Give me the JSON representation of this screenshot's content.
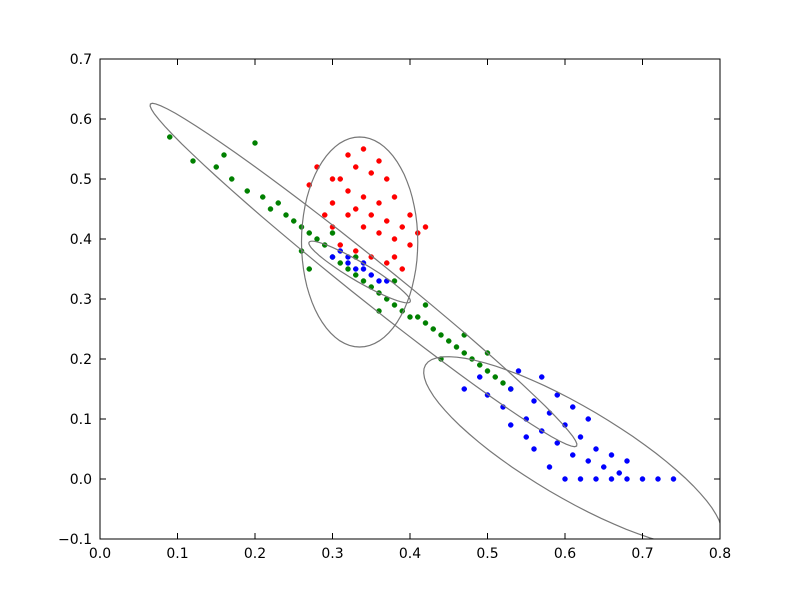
{
  "chart_data": {
    "type": "scatter",
    "xlim": [
      0.0,
      0.8
    ],
    "ylim": [
      -0.1,
      0.7
    ],
    "xticks": [
      {
        "value": 0.0,
        "label": "0.0"
      },
      {
        "value": 0.1,
        "label": "0.1"
      },
      {
        "value": 0.2,
        "label": "0.2"
      },
      {
        "value": 0.3,
        "label": "0.3"
      },
      {
        "value": 0.4,
        "label": "0.4"
      },
      {
        "value": 0.5,
        "label": "0.5"
      },
      {
        "value": 0.6,
        "label": "0.6"
      },
      {
        "value": 0.7,
        "label": "0.7"
      },
      {
        "value": 0.8,
        "label": "0.8"
      }
    ],
    "yticks": [
      {
        "value": -0.1,
        "label": "−0.1"
      },
      {
        "value": 0.0,
        "label": "0.0"
      },
      {
        "value": 0.1,
        "label": "0.1"
      },
      {
        "value": 0.2,
        "label": "0.2"
      },
      {
        "value": 0.3,
        "label": "0.3"
      },
      {
        "value": 0.4,
        "label": "0.4"
      },
      {
        "value": 0.5,
        "label": "0.5"
      },
      {
        "value": 0.6,
        "label": "0.6"
      },
      {
        "value": 0.7,
        "label": "0.7"
      }
    ],
    "grid": false,
    "series": [
      {
        "color": "#008000",
        "x": [
          0.09,
          0.12,
          0.15,
          0.17,
          0.19,
          0.2,
          0.21,
          0.22,
          0.23,
          0.24,
          0.25,
          0.26,
          0.27,
          0.28,
          0.29,
          0.3,
          0.31,
          0.32,
          0.33,
          0.34,
          0.35,
          0.36,
          0.37,
          0.38,
          0.39,
          0.4,
          0.41,
          0.42,
          0.43,
          0.44,
          0.45,
          0.46,
          0.47,
          0.48,
          0.49,
          0.5,
          0.51,
          0.52,
          0.53,
          0.26,
          0.3,
          0.36,
          0.42,
          0.47,
          0.44,
          0.33,
          0.16,
          0.27,
          0.38,
          0.5
        ],
        "values": [
          0.57,
          0.53,
          0.52,
          0.5,
          0.48,
          0.56,
          0.47,
          0.45,
          0.46,
          0.44,
          0.43,
          0.42,
          0.41,
          0.4,
          0.39,
          0.37,
          0.36,
          0.35,
          0.34,
          0.33,
          0.32,
          0.31,
          0.3,
          0.29,
          0.28,
          0.27,
          0.27,
          0.26,
          0.25,
          0.24,
          0.23,
          0.22,
          0.21,
          0.2,
          0.19,
          0.18,
          0.17,
          0.16,
          0.15,
          0.38,
          0.41,
          0.28,
          0.29,
          0.24,
          0.2,
          0.37,
          0.54,
          0.35,
          0.33,
          0.21
        ]
      },
      {
        "color": "#ff0000",
        "x": [
          0.28,
          0.3,
          0.32,
          0.33,
          0.34,
          0.35,
          0.36,
          0.37,
          0.3,
          0.32,
          0.34,
          0.36,
          0.38,
          0.4,
          0.42,
          0.3,
          0.32,
          0.34,
          0.36,
          0.38,
          0.4,
          0.41,
          0.31,
          0.33,
          0.35,
          0.37,
          0.39,
          0.29,
          0.27,
          0.35,
          0.33,
          0.37,
          0.39,
          0.31,
          0.38
        ],
        "values": [
          0.52,
          0.5,
          0.54,
          0.52,
          0.55,
          0.51,
          0.53,
          0.5,
          0.46,
          0.48,
          0.47,
          0.46,
          0.47,
          0.44,
          0.42,
          0.42,
          0.44,
          0.42,
          0.41,
          0.4,
          0.39,
          0.41,
          0.39,
          0.38,
          0.37,
          0.36,
          0.35,
          0.44,
          0.49,
          0.44,
          0.45,
          0.43,
          0.42,
          0.5,
          0.37
        ]
      },
      {
        "color": "#0000ff",
        "x": [
          0.3,
          0.31,
          0.32,
          0.33,
          0.34,
          0.35,
          0.36,
          0.37,
          0.32,
          0.34,
          0.47,
          0.49,
          0.5,
          0.52,
          0.53,
          0.55,
          0.56,
          0.57,
          0.58,
          0.59,
          0.6,
          0.61,
          0.62,
          0.63,
          0.64,
          0.65,
          0.66,
          0.67,
          0.68,
          0.56,
          0.58,
          0.6,
          0.62,
          0.64,
          0.66,
          0.68,
          0.7,
          0.72,
          0.74,
          0.54,
          0.57,
          0.61,
          0.63,
          0.59,
          0.55,
          0.53
        ],
        "values": [
          0.37,
          0.38,
          0.36,
          0.35,
          0.35,
          0.34,
          0.33,
          0.33,
          0.37,
          0.36,
          0.15,
          0.17,
          0.14,
          0.12,
          0.15,
          0.1,
          0.13,
          0.08,
          0.11,
          0.06,
          0.09,
          0.04,
          0.07,
          0.03,
          0.05,
          0.02,
          0.04,
          0.01,
          0.03,
          0.05,
          0.02,
          0.0,
          0.0,
          0.0,
          0.0,
          0.0,
          0.0,
          0.0,
          0.0,
          0.18,
          0.17,
          0.12,
          0.1,
          0.14,
          0.07,
          0.09
        ]
      }
    ],
    "ellipses": [
      {
        "center": [
          0.34,
          0.34
        ],
        "axis1": [
          -0.275,
          0.285
        ],
        "axis2": [
          0.016,
          0.026
        ]
      },
      {
        "center": [
          0.335,
          0.395
        ],
        "axis1": [
          0.0,
          0.175
        ],
        "axis2": [
          0.075,
          0.0
        ]
      },
      {
        "center": [
          0.335,
          0.345
        ],
        "axis1": [
          -0.065,
          0.05
        ],
        "axis2": [
          0.008,
          0.012
        ]
      },
      {
        "center": [
          0.61,
          0.045
        ],
        "axis1": [
          0.19,
          -0.145
        ],
        "axis2": [
          0.03,
          0.065
        ]
      }
    ],
    "ellipse_color": "#777777"
  }
}
